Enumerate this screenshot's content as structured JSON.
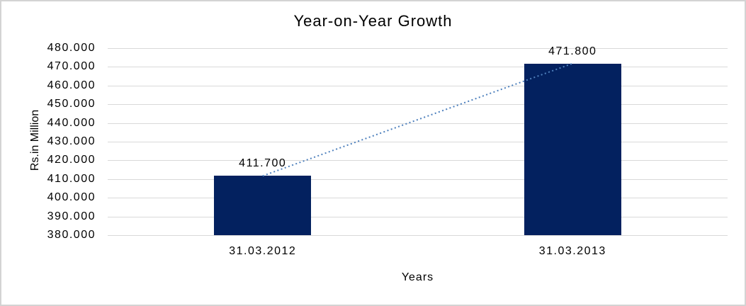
{
  "chart_data": {
    "type": "bar",
    "title": "Year-on-Year Growth",
    "xlabel": "Years",
    "ylabel": "Rs.in Million",
    "categories": [
      "31.03.2012",
      "31.03.2013"
    ],
    "values": [
      411.7,
      471.8
    ],
    "value_labels": [
      "411.700",
      "471.800"
    ],
    "y_ticks": [
      "480.000",
      "470.000",
      "460.000",
      "450.000",
      "440.000",
      "430.000",
      "420.000",
      "410.000",
      "400.000",
      "390.000",
      "380.000"
    ],
    "ylim": [
      380,
      480
    ],
    "y_tick_step": 10,
    "grid": true,
    "legend": "none",
    "trendline": {
      "type": "linear",
      "style": "dotted",
      "color": "#4F81BD",
      "connects": [
        411.7,
        471.8
      ]
    },
    "colors": {
      "bar_fill": "#03215F",
      "gridline": "#D9D9D9",
      "frame_border": "#D3D3D3",
      "text": "#000000",
      "background": "#FFFFFF"
    }
  }
}
